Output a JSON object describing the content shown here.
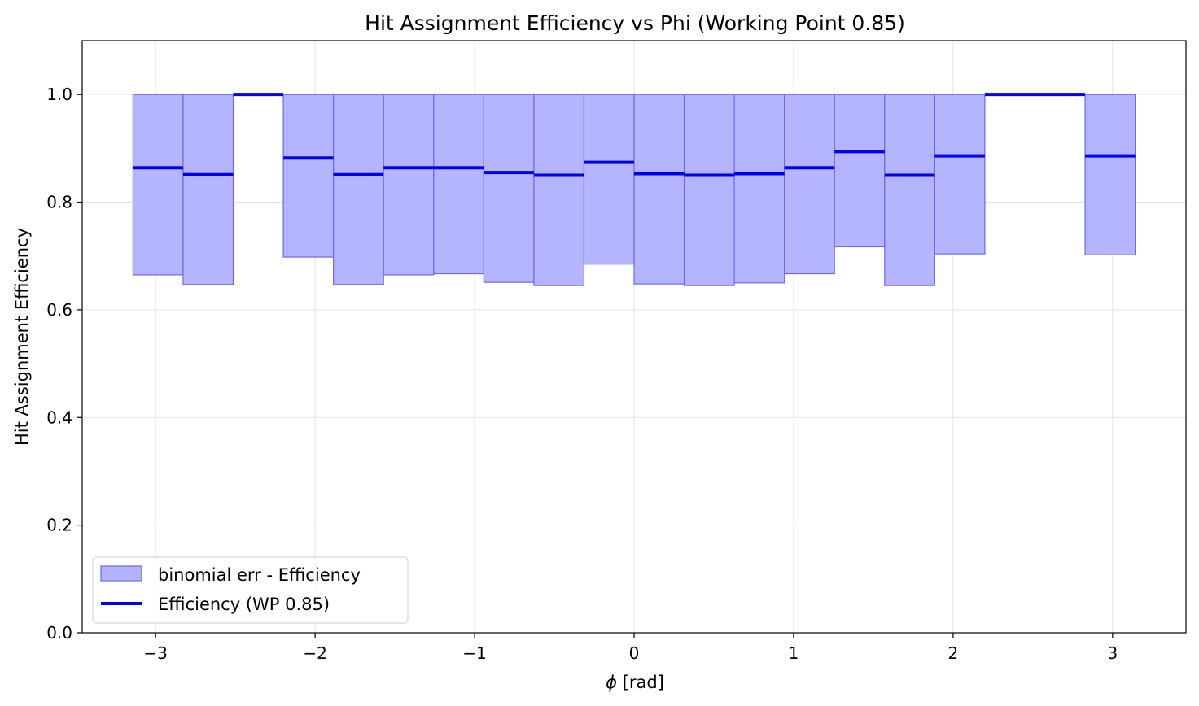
{
  "chart_data": {
    "type": "bar",
    "title": "Hit Assignment Efficiency vs Phi (Working Point 0.85)",
    "xlabel_symbol": "ϕ",
    "xlabel_unit": "[rad]",
    "ylabel": "Hit Assignment Efficiency",
    "xlim": [
      -3.46,
      3.46
    ],
    "ylim": [
      0.0,
      1.1
    ],
    "xticks": [
      -3,
      -2,
      -1,
      0,
      1,
      2,
      3
    ],
    "xtick_labels": [
      "−3",
      "−2",
      "−1",
      "0",
      "1",
      "2",
      "3"
    ],
    "yticks": [
      0.0,
      0.2,
      0.4,
      0.6,
      0.8,
      1.0
    ],
    "ytick_labels": [
      "0.0",
      "0.2",
      "0.4",
      "0.6",
      "0.8",
      "1.0"
    ],
    "grid": true,
    "legend_position": "lower-left",
    "colors": {
      "efficiency": "#0000ee",
      "band_fill": "#b2b2ff",
      "band_edge": "#6a6aee"
    },
    "bin_edges": [
      -3.1416,
      -2.8274,
      -2.5133,
      -2.1991,
      -1.885,
      -1.5708,
      -1.2566,
      -0.9425,
      -0.6283,
      -0.3142,
      0.0,
      0.3142,
      0.6283,
      0.9425,
      1.2566,
      1.5708,
      1.885,
      2.1991,
      2.5133,
      2.8274,
      3.1416
    ],
    "series": [
      {
        "name": "Efficiency (WP 0.85)",
        "values": [
          0.864,
          0.851,
          1.0,
          0.882,
          0.851,
          0.864,
          0.864,
          0.855,
          0.85,
          0.874,
          0.853,
          0.85,
          0.853,
          0.864,
          0.894,
          0.85,
          0.886,
          1.0,
          1.0,
          0.886
        ]
      },
      {
        "name": "binomial err - Efficiency",
        "lower": [
          0.665,
          0.647,
          null,
          0.698,
          0.647,
          0.665,
          0.667,
          0.651,
          0.645,
          0.685,
          0.648,
          0.645,
          0.65,
          0.667,
          0.717,
          0.645,
          0.704,
          null,
          null,
          0.702
        ],
        "upper": [
          1.0,
          1.0,
          null,
          1.0,
          1.0,
          1.0,
          1.0,
          1.0,
          1.0,
          1.0,
          1.0,
          1.0,
          1.0,
          1.0,
          1.0,
          1.0,
          1.0,
          null,
          null,
          1.0
        ]
      }
    ]
  }
}
